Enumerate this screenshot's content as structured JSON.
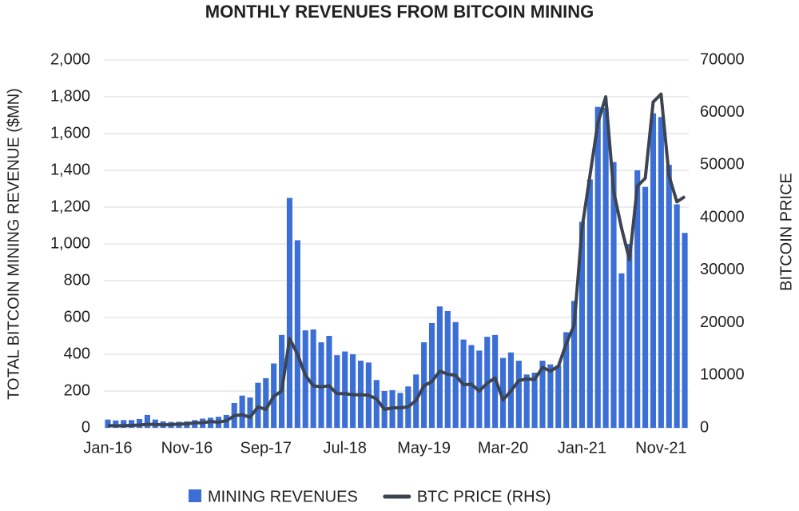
{
  "chart_data": {
    "type": "bar_line",
    "title": "MONTHLY REVENUES FROM BITCOIN MINING",
    "ylabel": "TOTAL BITCOIN MINING REVENUE ($MN)",
    "y2label": "BITCOIN PRICE",
    "categories": [
      "Jan-16",
      null,
      null,
      null,
      null,
      null,
      null,
      null,
      null,
      null,
      "Nov-16",
      null,
      null,
      null,
      null,
      null,
      null,
      null,
      null,
      null,
      "Sep-17",
      null,
      null,
      null,
      null,
      null,
      null,
      null,
      null,
      null,
      "Jul-18",
      null,
      null,
      null,
      null,
      null,
      null,
      null,
      null,
      null,
      "May-19",
      null,
      null,
      null,
      null,
      null,
      null,
      null,
      null,
      null,
      "Mar-20",
      null,
      null,
      null,
      null,
      null,
      null,
      null,
      null,
      null,
      "Jan-21",
      null,
      null,
      null,
      null,
      null,
      null,
      null,
      null,
      null,
      "Nov-21",
      null,
      null,
      null
    ],
    "series": [
      {
        "name": "MINING REVENUES",
        "type": "bar",
        "color": "#3b6fd6",
        "values": [
          45,
          40,
          42,
          42,
          48,
          70,
          45,
          35,
          32,
          33,
          35,
          42,
          50,
          55,
          60,
          70,
          135,
          175,
          165,
          245,
          270,
          350,
          505,
          1250,
          1020,
          530,
          535,
          465,
          500,
          395,
          415,
          400,
          365,
          355,
          260,
          200,
          205,
          190,
          225,
          290,
          465,
          570,
          660,
          635,
          575,
          480,
          450,
          420,
          495,
          505,
          380,
          410,
          365,
          290,
          300,
          365,
          345,
          340,
          520,
          690,
          1120,
          1350,
          1745,
          1740,
          1445,
          840,
          1000,
          1400,
          1310,
          1710,
          1690,
          1430,
          1215,
          1060
        ]
      },
      {
        "name": "BTC PRICE (RHS)",
        "type": "line",
        "axis": "y2",
        "color": "#3d4451",
        "values": [
          430,
          400,
          415,
          450,
          530,
          670,
          650,
          570,
          610,
          700,
          740,
          960,
          970,
          1190,
          1070,
          1350,
          2300,
          2500,
          2000,
          4000,
          3500,
          6000,
          7000,
          17000,
          14000,
          10000,
          8000,
          7800,
          8000,
          6500,
          6500,
          6300,
          6300,
          6200,
          5500,
          3500,
          3800,
          3800,
          4000,
          5200,
          8000,
          8800,
          10800,
          10200,
          10000,
          8200,
          8300,
          7000,
          8500,
          9500,
          5300,
          7000,
          9000,
          9300,
          9200,
          11500,
          10800,
          11700,
          16000,
          19500,
          38000,
          48000,
          58000,
          63000,
          45000,
          38000,
          32000,
          46000,
          47500,
          62000,
          63500,
          48000,
          43000,
          44000
        ]
      }
    ],
    "ylim": [
      0,
      2000
    ],
    "yticks": [
      0,
      200,
      400,
      600,
      800,
      {
        "value": 1000,
        "label": "1,000"
      },
      {
        "value": 1200,
        "label": "1,200"
      },
      {
        "value": 1400,
        "label": "1,400"
      },
      {
        "value": 1600,
        "label": "1,600"
      },
      {
        "value": 1800,
        "label": "1,800"
      },
      {
        "value": 2000,
        "label": "2,000"
      }
    ],
    "y2lim": [
      0,
      70000
    ],
    "y2ticks": [
      0,
      10000,
      20000,
      30000,
      40000,
      50000,
      60000,
      70000
    ],
    "grid": true,
    "legend": "bottom"
  }
}
